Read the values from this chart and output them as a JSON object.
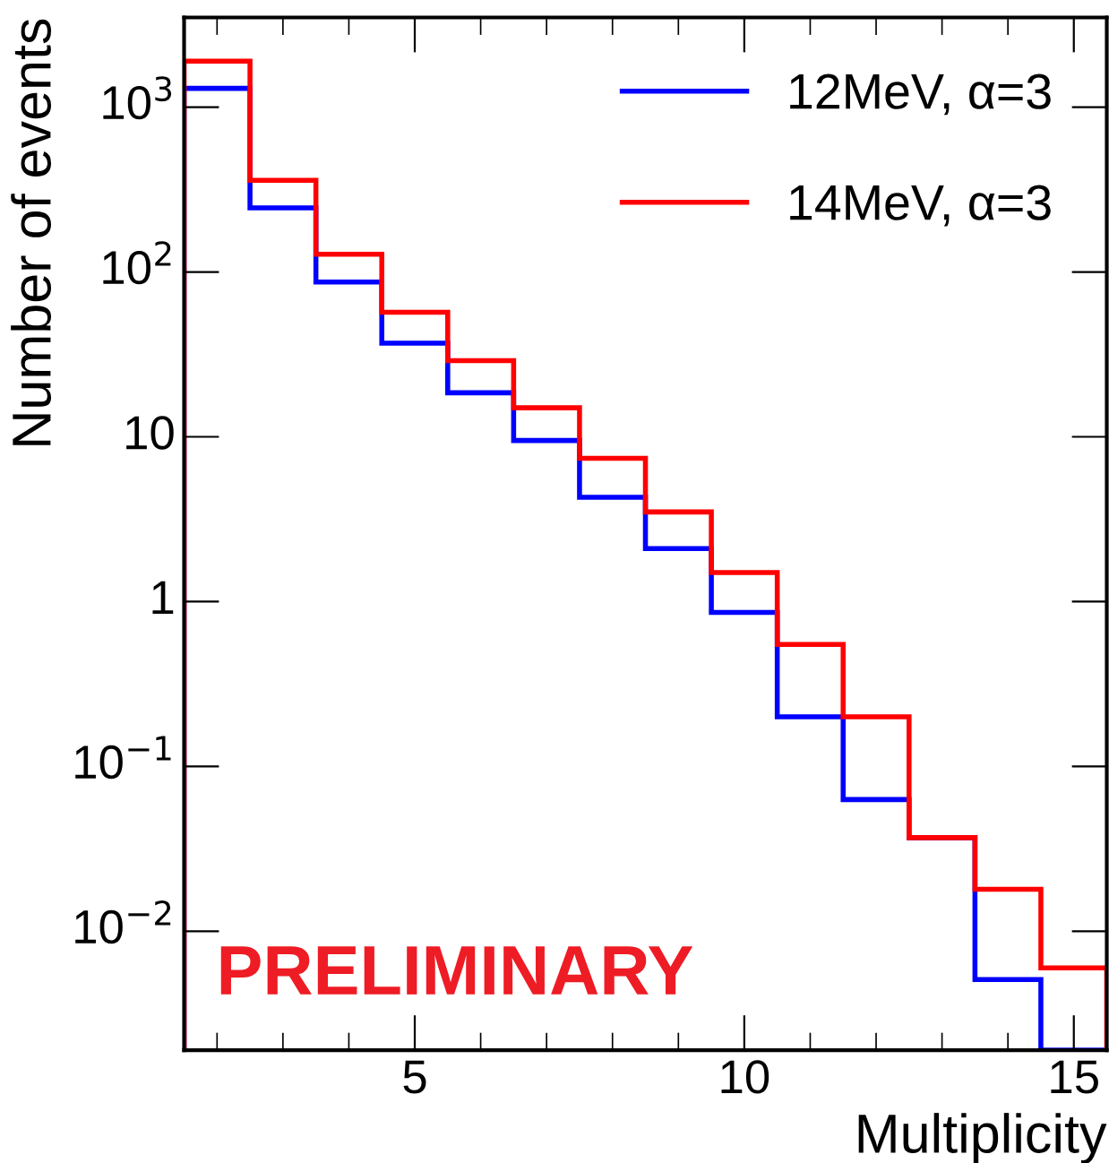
{
  "chart_data": {
    "type": "histogram",
    "xlabel": "Multiplicity",
    "ylabel": "Number of events",
    "bins": [
      1.5,
      2.5,
      3.5,
      4.5,
      5.5,
      6.5,
      7.5,
      8.5,
      9.5,
      10.5,
      11.5,
      12.5,
      13.5,
      14.5,
      15.5
    ],
    "series": [
      {
        "name": "12MeV, α=3",
        "color": "#0000ff",
        "values": [
          1300,
          245,
          87,
          37,
          18.5,
          9.5,
          4.3,
          2.1,
          0.86,
          0.2,
          0.063,
          0.037,
          0.0051,
          0.0019
        ]
      },
      {
        "name": "14MeV, α=3",
        "color": "#ff0000",
        "values": [
          1900,
          360,
          128,
          57,
          29,
          15,
          7.4,
          3.5,
          1.5,
          0.55,
          0.2,
          0.037,
          0.018,
          0.006
        ]
      }
    ],
    "log": true,
    "xlim": [
      1.5,
      15.5
    ],
    "ylim": [
      0.0019,
      3500
    ],
    "xticks": [
      5,
      10,
      15
    ],
    "yticks": [
      {
        "value": 0.01,
        "label": "10$^{−2}$"
      },
      {
        "value": 0.1,
        "label": "10$^{−1}$"
      },
      1,
      10,
      {
        "value": 100,
        "label": "10$^{2}$"
      },
      {
        "value": 1000,
        "label": "10$^{3}$"
      }
    ],
    "legend": "top right",
    "grid": false,
    "annotations": [
      "PRELIMINARY"
    ]
  }
}
